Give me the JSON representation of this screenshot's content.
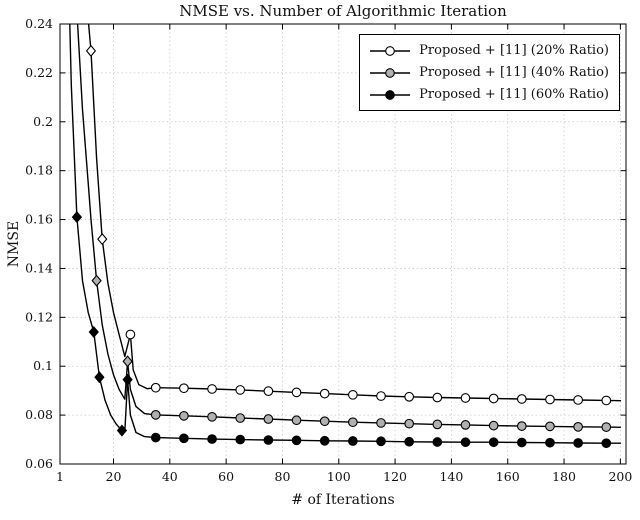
{
  "chart_data": {
    "type": "line",
    "title": "NMSE vs. Number of Algorithmic Iteration",
    "xlabel": "# of Iterations",
    "ylabel": "NMSE",
    "xlim": [
      1,
      202
    ],
    "ylim": [
      0.06,
      0.24
    ],
    "xticks": [
      1,
      20,
      40,
      60,
      80,
      100,
      120,
      140,
      160,
      180,
      200
    ],
    "xtick_labels": [
      "1",
      "20",
      "40",
      "60",
      "80",
      "100",
      "120",
      "140",
      "160",
      "180",
      "200"
    ],
    "yticks": [
      0.06,
      0.08,
      0.1,
      0.12,
      0.14,
      0.16,
      0.18,
      0.2,
      0.22,
      0.24
    ],
    "ytick_labels": [
      "0.06",
      "0.08",
      "0.1",
      "0.12",
      "0.14",
      "0.16",
      "0.18",
      "0.2",
      "0.22",
      "0.24"
    ],
    "grid": true,
    "grid_color": "#c8c8c8",
    "axis_color": "#000000",
    "line_color": "#000000",
    "legend": {
      "position": "top-right"
    },
    "series": [
      {
        "name": "Proposed + [11] (20% Ratio)",
        "marker_fill": "#ffffff",
        "line": [
          [
            1,
            0.6
          ],
          [
            3,
            0.46
          ],
          [
            5,
            0.37
          ],
          [
            7,
            0.315
          ],
          [
            9,
            0.275
          ],
          [
            10,
            0.255
          ],
          [
            12,
            0.229
          ],
          [
            14,
            0.185
          ],
          [
            16,
            0.152
          ],
          [
            18,
            0.134
          ],
          [
            20,
            0.122
          ],
          [
            22,
            0.113
          ],
          [
            24,
            0.104
          ],
          [
            26,
            0.113
          ],
          [
            27,
            0.0985
          ],
          [
            29,
            0.0925
          ],
          [
            32,
            0.0908
          ],
          [
            35,
            0.0912
          ],
          [
            45,
            0.091
          ],
          [
            55,
            0.0907
          ],
          [
            65,
            0.0903
          ],
          [
            75,
            0.0898
          ],
          [
            85,
            0.0893
          ],
          [
            95,
            0.0888
          ],
          [
            105,
            0.0883
          ],
          [
            115,
            0.0878
          ],
          [
            125,
            0.0875
          ],
          [
            135,
            0.0872
          ],
          [
            145,
            0.087
          ],
          [
            155,
            0.0868
          ],
          [
            165,
            0.0866
          ],
          [
            175,
            0.0864
          ],
          [
            185,
            0.0862
          ],
          [
            195,
            0.086
          ],
          [
            200,
            0.0859
          ]
        ],
        "diamond_markers": [
          [
            12,
            0.229
          ],
          [
            16,
            0.152
          ]
        ],
        "circle_markers": [
          [
            26,
            0.113
          ],
          [
            35,
            0.0912
          ],
          [
            45,
            0.091
          ],
          [
            55,
            0.0907
          ],
          [
            65,
            0.0903
          ],
          [
            75,
            0.0898
          ],
          [
            85,
            0.0893
          ],
          [
            95,
            0.0888
          ],
          [
            105,
            0.0883
          ],
          [
            115,
            0.0878
          ],
          [
            125,
            0.0875
          ],
          [
            135,
            0.0872
          ],
          [
            145,
            0.087
          ],
          [
            155,
            0.0868
          ],
          [
            165,
            0.0866
          ],
          [
            175,
            0.0864
          ],
          [
            185,
            0.0862
          ],
          [
            195,
            0.086
          ]
        ]
      },
      {
        "name": "Proposed + [11] (40% Ratio)",
        "marker_fill": "#b0b0b0",
        "line": [
          [
            1,
            0.52
          ],
          [
            3,
            0.38
          ],
          [
            5,
            0.3
          ],
          [
            7,
            0.245
          ],
          [
            9,
            0.205
          ],
          [
            11,
            0.175
          ],
          [
            12,
            0.16
          ],
          [
            14,
            0.135
          ],
          [
            16,
            0.117
          ],
          [
            18,
            0.105
          ],
          [
            20,
            0.0965
          ],
          [
            22,
            0.0905
          ],
          [
            24,
            0.0865
          ],
          [
            25,
            0.102
          ],
          [
            26,
            0.0905
          ],
          [
            28,
            0.0835
          ],
          [
            31,
            0.0806
          ],
          [
            35,
            0.0801
          ],
          [
            45,
            0.0797
          ],
          [
            55,
            0.0793
          ],
          [
            65,
            0.0788
          ],
          [
            75,
            0.0784
          ],
          [
            85,
            0.0779
          ],
          [
            95,
            0.0775
          ],
          [
            105,
            0.0771
          ],
          [
            115,
            0.0768
          ],
          [
            125,
            0.0765
          ],
          [
            135,
            0.0762
          ],
          [
            145,
            0.076
          ],
          [
            155,
            0.0757
          ],
          [
            165,
            0.0755
          ],
          [
            175,
            0.0754
          ],
          [
            185,
            0.0752
          ],
          [
            195,
            0.0751
          ],
          [
            200,
            0.075
          ]
        ],
        "diamond_markers": [
          [
            14,
            0.135
          ],
          [
            25,
            0.102
          ]
        ],
        "circle_markers": [
          [
            35,
            0.0801
          ],
          [
            45,
            0.0797
          ],
          [
            55,
            0.0793
          ],
          [
            65,
            0.0788
          ],
          [
            75,
            0.0784
          ],
          [
            85,
            0.0779
          ],
          [
            95,
            0.0775
          ],
          [
            105,
            0.0771
          ],
          [
            115,
            0.0768
          ],
          [
            125,
            0.0765
          ],
          [
            135,
            0.0762
          ],
          [
            145,
            0.076
          ],
          [
            155,
            0.0757
          ],
          [
            165,
            0.0755
          ],
          [
            175,
            0.0754
          ],
          [
            185,
            0.0752
          ],
          [
            195,
            0.0751
          ]
        ]
      },
      {
        "name": "Proposed + [11] (60% Ratio)",
        "marker_fill": "#000000",
        "line": [
          [
            1,
            0.46
          ],
          [
            3,
            0.31
          ],
          [
            5,
            0.215
          ],
          [
            7,
            0.161
          ],
          [
            9,
            0.135
          ],
          [
            11,
            0.122
          ],
          [
            13,
            0.114
          ],
          [
            15,
            0.0955
          ],
          [
            17,
            0.086
          ],
          [
            19,
            0.08
          ],
          [
            21,
            0.0763
          ],
          [
            23,
            0.0737
          ],
          [
            24,
            0.0731
          ],
          [
            25,
            0.0945
          ],
          [
            26,
            0.08
          ],
          [
            28,
            0.0729
          ],
          [
            31,
            0.0712
          ],
          [
            35,
            0.0708
          ],
          [
            45,
            0.0705
          ],
          [
            55,
            0.0702
          ],
          [
            65,
            0.07
          ],
          [
            75,
            0.0698
          ],
          [
            85,
            0.0697
          ],
          [
            95,
            0.0695
          ],
          [
            105,
            0.0694
          ],
          [
            115,
            0.0693
          ],
          [
            125,
            0.0691
          ],
          [
            135,
            0.069
          ],
          [
            145,
            0.0689
          ],
          [
            155,
            0.0689
          ],
          [
            165,
            0.0688
          ],
          [
            175,
            0.0687
          ],
          [
            185,
            0.0686
          ],
          [
            195,
            0.0685
          ],
          [
            200,
            0.0685
          ]
        ],
        "diamond_markers": [
          [
            7,
            0.161
          ],
          [
            13,
            0.114
          ],
          [
            15,
            0.0955
          ],
          [
            23,
            0.0737
          ],
          [
            25,
            0.0945
          ]
        ],
        "circle_markers": [
          [
            35,
            0.0708
          ],
          [
            45,
            0.0705
          ],
          [
            55,
            0.0702
          ],
          [
            65,
            0.07
          ],
          [
            75,
            0.0698
          ],
          [
            85,
            0.0697
          ],
          [
            95,
            0.0695
          ],
          [
            105,
            0.0694
          ],
          [
            115,
            0.0693
          ],
          [
            125,
            0.0691
          ],
          [
            135,
            0.069
          ],
          [
            145,
            0.0689
          ],
          [
            155,
            0.0689
          ],
          [
            165,
            0.0688
          ],
          [
            175,
            0.0687
          ],
          [
            185,
            0.0686
          ],
          [
            195,
            0.0685
          ]
        ]
      }
    ]
  }
}
